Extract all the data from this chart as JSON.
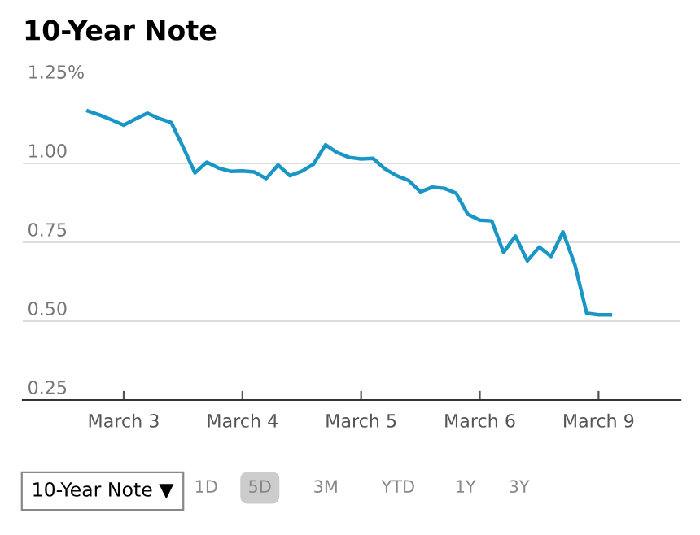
{
  "chart_data": {
    "type": "line",
    "title": "10-Year Note",
    "categories": [
      null,
      null,
      null,
      "March 3",
      null,
      null,
      null,
      null,
      null,
      null,
      null,
      null,
      null,
      "March 4",
      null,
      null,
      null,
      null,
      null,
      null,
      null,
      null,
      null,
      "March 5",
      null,
      null,
      null,
      null,
      null,
      null,
      null,
      null,
      null,
      "March 6",
      null,
      null,
      null,
      null,
      null,
      null,
      null,
      null,
      null,
      "March 9",
      null
    ],
    "series": [
      {
        "color": "#1a96c6",
        "values": [
          1.166,
          1.153,
          1.138,
          1.121,
          1.141,
          1.159,
          1.142,
          1.13,
          1.052,
          0.97,
          1.004,
          0.985,
          0.975,
          0.976,
          0.973,
          0.952,
          0.995,
          0.961,
          0.975,
          0.998,
          1.059,
          1.034,
          1.019,
          1.014,
          1.016,
          0.983,
          0.961,
          0.946,
          0.91,
          0.925,
          0.921,
          0.906,
          0.838,
          0.82,
          0.818,
          0.718,
          0.77,
          0.691,
          0.735,
          0.705,
          0.783,
          0.68,
          0.525,
          0.52,
          0.52
        ]
      }
    ],
    "ylim": [
      0.25,
      1.25
    ],
    "yticks": [
      {
        "value": 0.25,
        "label": "0.25"
      },
      {
        "value": 0.5,
        "label": "0.50"
      },
      {
        "value": 0.75,
        "label": "0.75"
      },
      {
        "value": 1.0,
        "label": "1.00"
      },
      {
        "value": 1.25,
        "label": "1.25%"
      }
    ],
    "grid": "y",
    "marker": "none",
    "line_style": "solid",
    "legend": false,
    "annotations": [
      "10-Year Note ▼",
      "1D",
      "5D",
      "3M",
      "YTD",
      "1Y",
      "3Y"
    ]
  }
}
